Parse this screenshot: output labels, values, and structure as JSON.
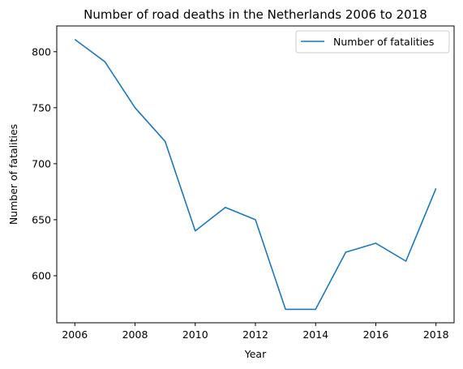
{
  "chart_data": {
    "type": "line",
    "title": "Number of road deaths in the Netherlands 2006 to 2018",
    "xlabel": "Year",
    "ylabel": "Number of fatalities",
    "x": [
      2006,
      2007,
      2008,
      2009,
      2010,
      2011,
      2012,
      2013,
      2014,
      2015,
      2016,
      2017,
      2018
    ],
    "series": [
      {
        "name": "Number of fatalities",
        "color": "#1f77b4",
        "values": [
          811,
          791,
          750,
          720,
          640,
          661,
          650,
          570,
          570,
          621,
          629,
          613,
          678
        ]
      }
    ],
    "xlim": [
      2005.4,
      2018.6
    ],
    "ylim": [
      558,
      823
    ],
    "xticks": [
      2006,
      2008,
      2010,
      2012,
      2014,
      2016,
      2018
    ],
    "yticks": [
      600,
      650,
      700,
      750,
      800
    ],
    "grid": false,
    "legend_position": "top-right"
  }
}
